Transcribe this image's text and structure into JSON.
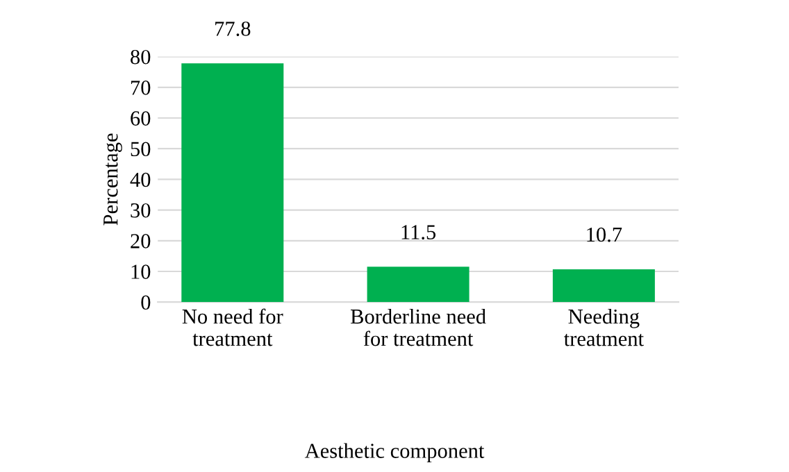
{
  "chart_data": {
    "type": "bar",
    "xlabel": "Aesthetic component",
    "ylabel": "Percentage",
    "categories": [
      "No need for\ntreatment",
      "Borderline need\nfor treatment",
      "Needing\ntreatment"
    ],
    "values": [
      77.8,
      11.5,
      10.7
    ],
    "color": "#00b050",
    "ylim": [
      0,
      80
    ],
    "yticks": [
      0,
      10,
      20,
      30,
      40,
      50,
      60,
      70,
      80
    ],
    "grid": "y",
    "data_labels": true
  }
}
